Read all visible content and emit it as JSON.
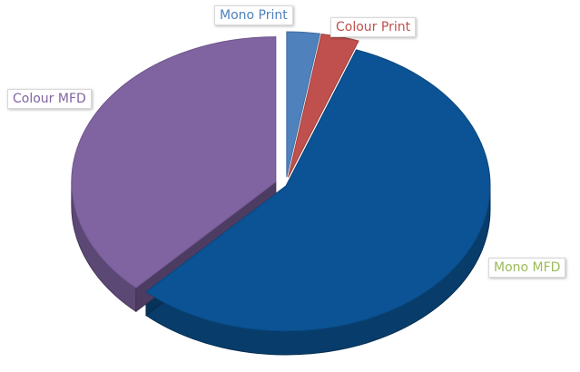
{
  "chart_data": {
    "type": "pie",
    "style": "3d-exploded",
    "legend": "none",
    "categories": [
      "Mono Print",
      "Colour Print",
      "Mono MFD",
      "Colour MFD"
    ],
    "values": [
      2.6,
      3.0,
      56.4,
      38.0
    ],
    "value_unit": "percent (estimated)",
    "colors": [
      "#4f81bd",
      "#c0504d",
      "#0b5394",
      "#8064a2"
    ],
    "label_colors": [
      "#4f81bd",
      "#c0504d",
      "#9bbb59",
      "#8064a2"
    ]
  }
}
